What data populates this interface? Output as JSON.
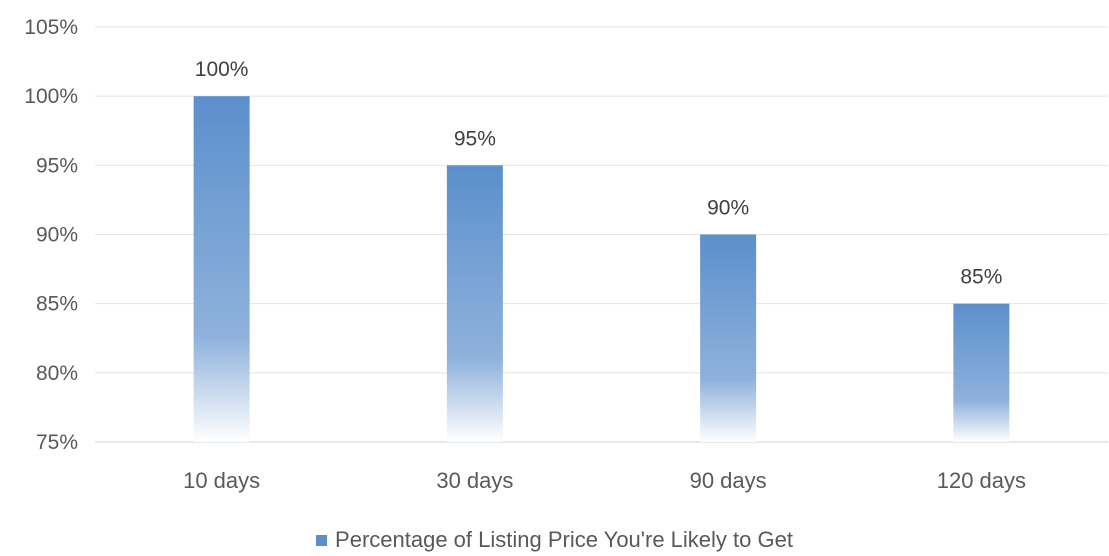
{
  "chart_data": {
    "type": "bar",
    "categories": [
      "10 days",
      "30 days",
      "90 days",
      "120 days"
    ],
    "series": [
      {
        "name": "Percentage of Listing Price You're Likely to Get",
        "values": [
          100,
          95,
          90,
          85
        ],
        "data_labels": [
          "100%",
          "95%",
          "90%",
          "85%"
        ],
        "color": "#5b8fcc"
      }
    ],
    "ylim": [
      75,
      105
    ],
    "y_ticks": [
      75,
      80,
      85,
      90,
      95,
      100,
      105
    ],
    "y_tick_labels": [
      "75%",
      "80%",
      "85%",
      "90%",
      "95%",
      "100%",
      "105%"
    ],
    "title": "",
    "xlabel": "",
    "ylabel": "",
    "grid": true,
    "legend_position": "bottom"
  }
}
